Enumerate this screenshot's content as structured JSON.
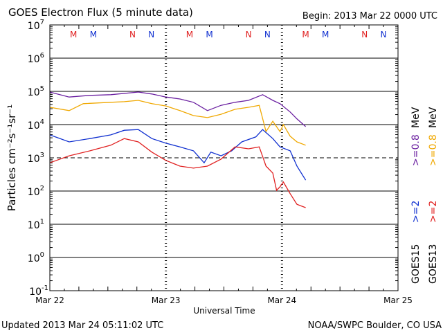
{
  "chart_data": {
    "type": "line",
    "title": "GOES Electron Flux (5 minute data)",
    "begin_label": "Begin: 2013 Mar 22 0000 UTC",
    "xlabel": "Universal Time",
    "ylabel": "Particles cm⁻²s⁻¹sr⁻¹",
    "yscale": "log",
    "ylim_log10": [
      -1,
      7
    ],
    "y_ticks": [
      {
        "base": "10",
        "exp": "7"
      },
      {
        "base": "10",
        "exp": "6"
      },
      {
        "base": "10",
        "exp": "5"
      },
      {
        "base": "10",
        "exp": "4"
      },
      {
        "base": "10",
        "exp": "3"
      },
      {
        "base": "10",
        "exp": "2"
      },
      {
        "base": "10",
        "exp": "1"
      },
      {
        "base": "10",
        "exp": "0"
      },
      {
        "base": "10",
        "exp": "-1"
      }
    ],
    "x_unit": "hours since 2013 Mar 22 0000 UTC",
    "xlim": [
      0,
      72
    ],
    "x_ticks": [
      "Mar 22",
      "Mar 23",
      "Mar 24",
      "Mar 25"
    ],
    "threshold_log10": 3,
    "markers": [
      {
        "label": "M",
        "color": "#e02020",
        "hour": 4.9
      },
      {
        "label": "M",
        "color": "#1030d0",
        "hour": 9
      },
      {
        "label": "N",
        "color": "#e02020",
        "hour": 17.1
      },
      {
        "label": "N",
        "color": "#1030d0",
        "hour": 21
      },
      {
        "label": "M",
        "color": "#e02020",
        "hour": 28.9
      },
      {
        "label": "M",
        "color": "#1030d0",
        "hour": 33
      },
      {
        "label": "N",
        "color": "#e02020",
        "hour": 41.1
      },
      {
        "label": "N",
        "color": "#1030d0",
        "hour": 45
      },
      {
        "label": "M",
        "color": "#e02020",
        "hour": 52.9
      },
      {
        "label": "M",
        "color": "#1030d0",
        "hour": 57
      },
      {
        "label": "N",
        "color": "#e02020",
        "hour": 65.1
      },
      {
        "label": "N",
        "color": "#1030d0",
        "hour": 69
      }
    ],
    "series": [
      {
        "name": "GOES15 >=0.8 MeV",
        "color": "#6a1fa0",
        "x": [
          0,
          4,
          8.3,
          12.6,
          18.3,
          21.1,
          24,
          26.9,
          29.7,
          32.6,
          35.4,
          38.3,
          41.1,
          44,
          46.1,
          47.6,
          49.7,
          51.1,
          52.9
        ],
        "log10_values": [
          4.98,
          4.83,
          4.88,
          4.9,
          4.98,
          4.92,
          4.83,
          4.77,
          4.67,
          4.42,
          4.58,
          4.67,
          4.73,
          4.9,
          4.73,
          4.63,
          4.38,
          4.17,
          3.94
        ]
      },
      {
        "name": "GOES13 >=0.8 MeV",
        "color": "#f0a800",
        "x": [
          0,
          4,
          6.9,
          12.6,
          15.4,
          18.3,
          21.1,
          24,
          26.9,
          29.7,
          32.6,
          35.4,
          38.3,
          41.1,
          43.3,
          44.7,
          46.1,
          47.6,
          48.3,
          49.7,
          51.1,
          52.9
        ],
        "log10_values": [
          4.52,
          4.42,
          4.63,
          4.67,
          4.69,
          4.73,
          4.63,
          4.56,
          4.42,
          4.27,
          4.21,
          4.31,
          4.46,
          4.52,
          4.58,
          3.79,
          4.1,
          3.79,
          4.0,
          3.65,
          3.48,
          3.38
        ]
      },
      {
        "name": "GOES15 >=2 MeV",
        "color": "#1030d0",
        "x": [
          0,
          4,
          8.3,
          12.6,
          15.4,
          18.3,
          21.1,
          24,
          26.9,
          29.7,
          31.9,
          33.3,
          35.4,
          37.6,
          39.7,
          42.6,
          44,
          46.1,
          47.6,
          49.7,
          51.1,
          52.9
        ],
        "log10_values": [
          3.69,
          3.48,
          3.58,
          3.69,
          3.83,
          3.85,
          3.58,
          3.44,
          3.33,
          3.21,
          2.85,
          3.17,
          3.06,
          3.21,
          3.48,
          3.63,
          3.85,
          3.58,
          3.33,
          3.21,
          2.75,
          2.33
        ]
      },
      {
        "name": "GOES13 >=2 MeV",
        "color": "#e02020",
        "x": [
          0,
          4,
          8.3,
          12.6,
          15.4,
          18.3,
          21.1,
          24,
          26.9,
          29.7,
          32.6,
          35.4,
          38.3,
          41.1,
          43.3,
          44.7,
          46.1,
          46.9,
          47.6,
          48.3,
          49.7,
          51.1,
          52.9
        ],
        "log10_values": [
          2.85,
          3.06,
          3.21,
          3.38,
          3.58,
          3.48,
          3.17,
          2.92,
          2.75,
          2.69,
          2.75,
          2.96,
          3.33,
          3.27,
          3.33,
          2.75,
          2.54,
          2.02,
          2.13,
          2.27,
          1.92,
          1.6,
          1.5
        ]
      }
    ],
    "legend": {
      "placement": "right",
      "goes15": {
        "sat": "GOES15",
        "e2": ">=2",
        "e08": ">=0.8",
        "unit": "MeV"
      },
      "goes13": {
        "sat": "GOES13",
        "e2": ">=2",
        "e08": ">=0.8",
        "unit": "MeV"
      }
    }
  },
  "footer": {
    "updated": "Updated 2013 Mar 24 05:11:02 UTC",
    "credit": "NOAA/SWPC Boulder, CO USA"
  }
}
